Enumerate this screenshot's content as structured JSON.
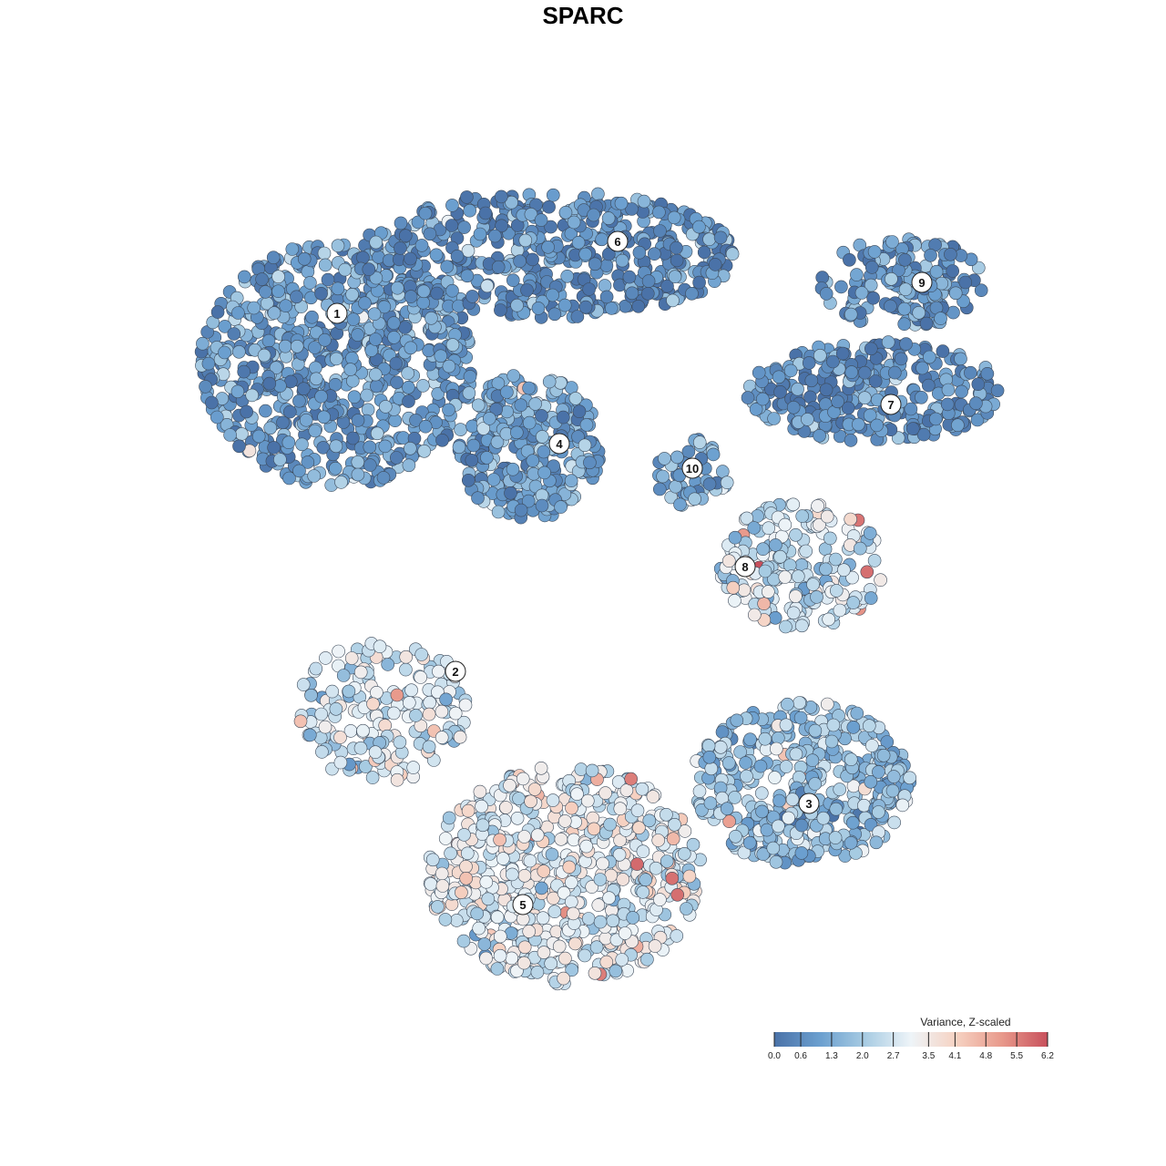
{
  "chart_data": {
    "type": "scatter",
    "title": "SPARC",
    "xlabel": "",
    "ylabel": "",
    "grid": false,
    "legend_position": "bottom-right",
    "color_scale": {
      "title": "Variance, Z-scaled",
      "min": 0.0,
      "max": 6.2,
      "ticks": [
        "0.0",
        "0.6",
        "1.3",
        "2.0",
        "2.7",
        "3.5",
        "4.1",
        "4.8",
        "5.5",
        "6.2"
      ],
      "tick_values": [
        0.0,
        0.6,
        1.3,
        2.0,
        2.7,
        3.5,
        4.1,
        4.8,
        5.5,
        6.2
      ],
      "colors": [
        "#4a72a8",
        "#6b9fcf",
        "#a8cce3",
        "#eef4f8",
        "#f6d2c2",
        "#e8998b",
        "#c8505c"
      ]
    },
    "clusters": [
      {
        "label": "1",
        "mean_value": 1.0
      },
      {
        "label": "2",
        "mean_value": 2.7
      },
      {
        "label": "3",
        "mean_value": 1.8
      },
      {
        "label": "4",
        "mean_value": 1.1
      },
      {
        "label": "5",
        "mean_value": 3.0
      },
      {
        "label": "6",
        "mean_value": 0.6
      },
      {
        "label": "7",
        "mean_value": 0.7
      },
      {
        "label": "8",
        "mean_value": 2.5
      },
      {
        "label": "9",
        "mean_value": 0.8
      },
      {
        "label": "10",
        "mean_value": 1.3
      }
    ]
  }
}
